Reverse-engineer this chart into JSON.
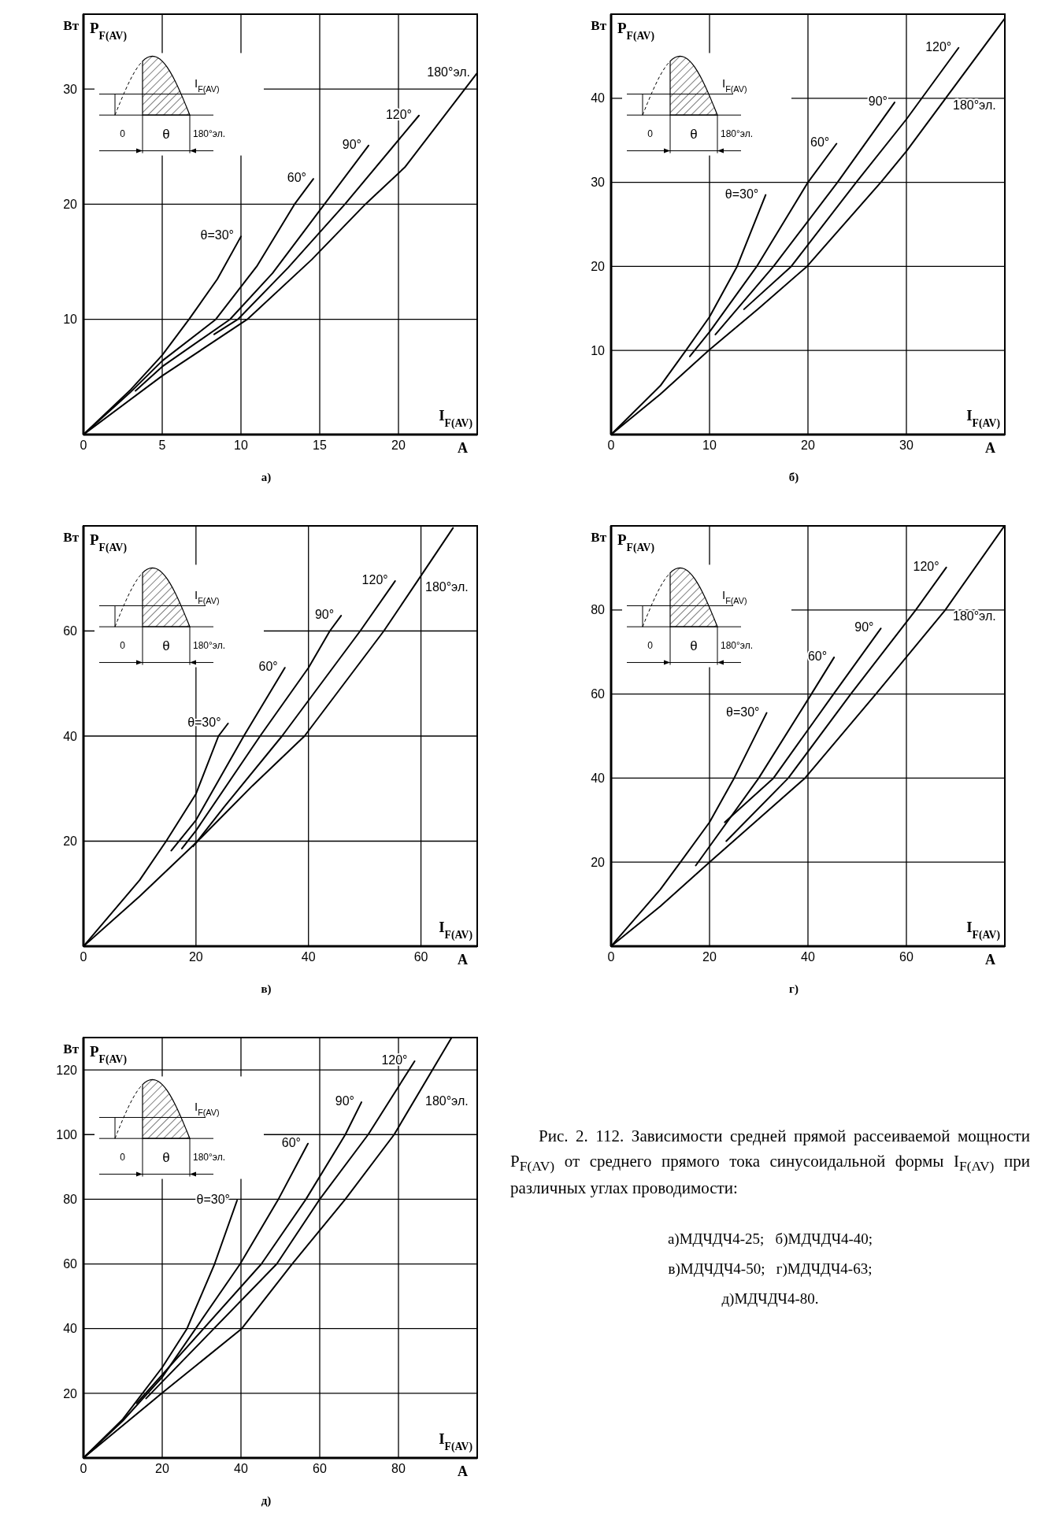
{
  "chart_data": [
    {
      "type": "line",
      "title": "а)",
      "xlabel": "I$_{F(AV)}$",
      "ylabel": "P$_{F(AV)}$",
      "annotations": [
        "Вт",
        "А",
        "I$_{F(AV)}$",
        "0",
        "θ",
        "180°эл."
      ],
      "xlim": [
        0,
        25
      ],
      "ylim": [
        0,
        36.5
      ],
      "xticks": [
        0,
        5,
        10,
        15,
        20
      ],
      "yticks": [
        10,
        20,
        30
      ],
      "grid": true,
      "marker": "none",
      "series": [
        {
          "name": "θ=30°",
          "color": "#000000",
          "x": [
            0,
            3,
            5,
            6.7,
            8.5,
            10
          ],
          "values": [
            0,
            3.9,
            6.9,
            10,
            13.5,
            17.2
          ]
        },
        {
          "name": "60°",
          "color": "#000000",
          "x": [
            0,
            3,
            5,
            8.4,
            11,
            13.4,
            14.6
          ],
          "values": [
            0,
            3.7,
            6.4,
            10,
            14.6,
            20,
            22.2
          ]
        },
        {
          "name": "90°",
          "color": "#000000",
          "x": [
            3.3,
            5,
            9.3,
            12,
            15.3,
            18.1
          ],
          "values": [
            3.8,
            5.9,
            10,
            14,
            20,
            25.1
          ]
        },
        {
          "name": "120°",
          "color": "#000000",
          "x": [
            8.3,
            9.8,
            13,
            16.6,
            21.3
          ],
          "values": [
            8.7,
            10,
            14.5,
            20,
            27.7
          ]
        },
        {
          "name": "180°эл.",
          "color": "#000000",
          "x": [
            0,
            5,
            10.4,
            14.5,
            17.9,
            20.4,
            25
          ],
          "values": [
            0,
            5.1,
            10,
            15.2,
            20,
            23.2,
            31.4
          ]
        }
      ]
    },
    {
      "type": "line",
      "title": "б)",
      "xlabel": "I$_{F(AV)}$",
      "ylabel": "P$_{F(AV)}$",
      "annotations": [
        "Вт",
        "А",
        "I$_{F(AV)}$",
        "0",
        "θ",
        "180°эл."
      ],
      "xlim": [
        0,
        40
      ],
      "ylim": [
        0,
        50
      ],
      "xticks": [
        0,
        10,
        20,
        30
      ],
      "yticks": [
        10,
        20,
        30,
        40
      ],
      "grid": true,
      "marker": "none",
      "series": [
        {
          "name": "θ=30°",
          "color": "#000000",
          "x": [
            0,
            5,
            7.6,
            10,
            12.8,
            15.7
          ],
          "values": [
            0,
            5.8,
            10,
            14,
            20,
            28.5
          ]
        },
        {
          "name": "60°",
          "color": "#000000",
          "x": [
            8,
            10,
            14.8,
            20,
            22.9
          ],
          "values": [
            9.3,
            12.2,
            20,
            30,
            34.6
          ]
        },
        {
          "name": "90°",
          "color": "#000000",
          "x": [
            10.6,
            16.5,
            23,
            28.8
          ],
          "values": [
            11.9,
            20,
            30,
            39.5
          ]
        },
        {
          "name": "120°",
          "color": "#000000",
          "x": [
            13.5,
            18.3,
            24.9,
            30,
            35.3
          ],
          "values": [
            14.9,
            20,
            30,
            37.5,
            46
          ]
        },
        {
          "name": "180°эл.",
          "color": "#000000",
          "x": [
            0,
            5,
            9.9,
            15,
            19.9,
            27.4,
            30,
            40
          ],
          "values": [
            0,
            4.8,
            10,
            15,
            20,
            30,
            33.7,
            49.5
          ]
        }
      ]
    },
    {
      "type": "line",
      "title": "в)",
      "xlabel": "I$_{F(AV)}$",
      "ylabel": "P$_{F(AV)}$",
      "annotations": [
        "Вт",
        "А",
        "I$_{F(AV)}$",
        "0",
        "θ",
        "180°эл."
      ],
      "xlim": [
        0,
        70
      ],
      "ylim": [
        0,
        80
      ],
      "xticks": [
        0,
        20,
        40,
        60
      ],
      "yticks": [
        20,
        40,
        60
      ],
      "grid": true,
      "marker": "none",
      "series": [
        {
          "name": "θ=30°",
          "color": "#000000",
          "x": [
            0,
            10,
            14.7,
            20,
            24,
            25.7
          ],
          "values": [
            0,
            12.6,
            20,
            29,
            40,
            42.4
          ]
        },
        {
          "name": "60°",
          "color": "#000000",
          "x": [
            15.6,
            20,
            28.5,
            35.8
          ],
          "values": [
            18.2,
            24,
            40,
            53
          ]
        },
        {
          "name": "90°",
          "color": "#000000",
          "x": [
            17.5,
            20,
            31.4,
            40,
            43.8,
            45.8
          ],
          "values": [
            18.6,
            22,
            40,
            53,
            60,
            62.9
          ]
        },
        {
          "name": "120°",
          "color": "#000000",
          "x": [
            19.5,
            25,
            35.3,
            49.2,
            55.4
          ],
          "values": [
            19,
            26.5,
            40,
            60,
            69.5
          ]
        },
        {
          "name": "180°эл.",
          "color": "#000000",
          "x": [
            0,
            10,
            20.3,
            30,
            39.3,
            53.4,
            60,
            65.7
          ],
          "values": [
            0,
            9.5,
            20,
            30.5,
            40,
            60,
            70.5,
            79.6
          ]
        }
      ]
    },
    {
      "type": "line",
      "title": "г)",
      "xlabel": "I$_{F(AV)}$",
      "ylabel": "P$_{F(AV)}$",
      "annotations": [
        "Вт",
        "А",
        "I$_{F(AV)}$",
        "0",
        "θ",
        "180°эл."
      ],
      "xlim": [
        0,
        80
      ],
      "ylim": [
        0,
        100
      ],
      "xticks": [
        0,
        20,
        40,
        60
      ],
      "yticks": [
        20,
        40,
        60,
        80
      ],
      "grid": true,
      "marker": "none",
      "series": [
        {
          "name": "θ=30°",
          "color": "#000000",
          "x": [
            0,
            10,
            14.1,
            20,
            25,
            31.6
          ],
          "values": [
            0,
            13.5,
            20,
            29.5,
            40,
            55.5
          ]
        },
        {
          "name": "60°",
          "color": "#000000",
          "x": [
            17.2,
            30,
            40.7,
            45.3
          ],
          "values": [
            19.2,
            40,
            60,
            68.7
          ]
        },
        {
          "name": "90°",
          "color": "#000000",
          "x": [
            23.1,
            33,
            45.2,
            54.8
          ],
          "values": [
            29.5,
            40,
            60,
            75.6
          ]
        },
        {
          "name": "120°",
          "color": "#000000",
          "x": [
            23.4,
            36,
            48.7,
            61.9,
            68.1
          ],
          "values": [
            25,
            40,
            60,
            80,
            90.1
          ]
        },
        {
          "name": "180°эл.",
          "color": "#000000",
          "x": [
            0,
            10,
            20,
            39.4,
            53.8,
            67.9,
            79.8
          ],
          "values": [
            0,
            9.5,
            20,
            40,
            60,
            80,
            99.8
          ]
        }
      ]
    },
    {
      "type": "line",
      "title": "д)",
      "xlabel": "I$_{F(AV)}$",
      "ylabel": "P$_{F(AV)}$",
      "annotations": [
        "Вт",
        "А",
        "I$_{F(AV)}$",
        "0",
        "θ",
        "180°эл."
      ],
      "xlim": [
        0,
        100
      ],
      "ylim": [
        0,
        130
      ],
      "xticks": [
        0,
        20,
        40,
        60,
        80
      ],
      "yticks": [
        20,
        40,
        60,
        80,
        100,
        120
      ],
      "grid": true,
      "marker": "none",
      "series": [
        {
          "name": "θ=30°",
          "color": "#000000",
          "x": [
            0,
            10,
            20,
            26.3,
            33.3,
            39
          ],
          "values": [
            0,
            12,
            28,
            40,
            60,
            79.6
          ]
        },
        {
          "name": "60°",
          "color": "#000000",
          "x": [
            0,
            10,
            20,
            39.8,
            49.5,
            57
          ],
          "values": [
            0,
            11.5,
            25,
            60,
            80,
            97.2
          ]
        },
        {
          "name": "90°",
          "color": "#000000",
          "x": [
            13.5,
            45.2,
            56.5,
            66.5,
            70.6
          ],
          "values": [
            16.9,
            60,
            80,
            100,
            110
          ]
        },
        {
          "name": "120°",
          "color": "#000000",
          "x": [
            15.9,
            49.1,
            60,
            72.3,
            84.1
          ],
          "values": [
            18.4,
            60,
            80,
            100,
            122.7
          ]
        },
        {
          "name": "180°эл.",
          "color": "#000000",
          "x": [
            0,
            19.9,
            40.2,
            53,
            66.5,
            78.9,
            93.5
          ],
          "values": [
            0,
            20,
            40,
            60,
            80,
            100,
            130
          ]
        }
      ]
    },
    {
      "type": "other",
      "title": "Рис. 2. 112. Зависимости средней прямой рассеиваемой мощности P$_{F(AV)}$ от среднего прямого тока синусоидальной формы I$_{F(AV)}$ при различных углах проводимости:",
      "annotations": [
        "а)МДЧДЧ4-25;   б)МДЧДЧ4-40;",
        "в)МДЧДЧ4-50;   г)МДЧДЧ4-63;",
        "д)МДЧДЧ4-80."
      ]
    }
  ]
}
